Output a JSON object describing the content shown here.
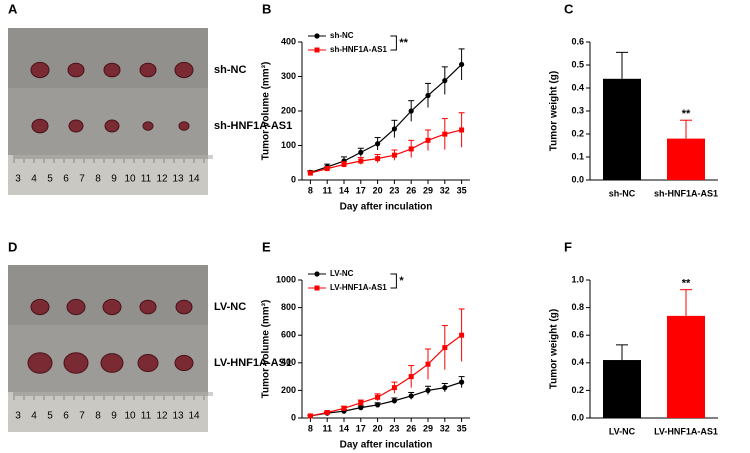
{
  "panel_letters": [
    "A",
    "B",
    "C",
    "D",
    "E",
    "F"
  ],
  "photos": [
    {
      "labels": [
        "sh-NC",
        "sh-HNF1A-AS1"
      ],
      "ruler": [
        3,
        4,
        5,
        6,
        7,
        8,
        9,
        10,
        11,
        12,
        13,
        14
      ]
    },
    {
      "labels": [
        "LV-NC",
        "LV-HNF1A-AS1"
      ],
      "ruler": [
        3,
        4,
        5,
        6,
        7,
        8,
        9,
        10,
        11,
        12,
        13,
        14
      ]
    }
  ],
  "chart_data": [
    {
      "type": "line",
      "ylabel": "Tumor volume (mm³)",
      "xlabel": "Day after inculation",
      "x": [
        8,
        11,
        14,
        17,
        20,
        23,
        26,
        29,
        32,
        35
      ],
      "xlim": [
        6.5,
        36.5
      ],
      "xticks": [
        8,
        11,
        14,
        17,
        20,
        23,
        26,
        29,
        32,
        35
      ],
      "ylim": [
        0,
        400
      ],
      "yticks": [
        0,
        100,
        200,
        300,
        400
      ],
      "annotation": "**",
      "series": [
        {
          "name": "sh-NC",
          "color": "#000000",
          "values": [
            22,
            38,
            55,
            80,
            105,
            148,
            200,
            245,
            288,
            335
          ],
          "errors": [
            5,
            8,
            12,
            12,
            18,
            25,
            30,
            35,
            40,
            45
          ]
        },
        {
          "name": "sh-HNF1A-AS1",
          "color": "#ff0000",
          "values": [
            20,
            33,
            45,
            55,
            62,
            72,
            90,
            115,
            133,
            145
          ],
          "errors": [
            5,
            6,
            8,
            10,
            12,
            15,
            25,
            30,
            45,
            50
          ]
        }
      ]
    },
    {
      "type": "bar",
      "ylabel": "Tumor weight (g)",
      "categories": [
        "sh-NC",
        "sh-HNF1A-AS1"
      ],
      "values": [
        0.44,
        0.18
      ],
      "errors": [
        0.115,
        0.08
      ],
      "colors": [
        "#000000",
        "#ff0000"
      ],
      "ylim": [
        0,
        0.6
      ],
      "yticks": [
        {
          "value": 0,
          "label": "0.0"
        },
        0.1,
        0.2,
        0.3,
        0.4,
        0.5,
        0.6
      ],
      "annotation": "**"
    },
    {
      "type": "line",
      "ylabel": "Tumor volume (mm³)",
      "xlabel": "Day after inculation",
      "x": [
        8,
        11,
        14,
        17,
        20,
        23,
        26,
        29,
        32,
        35
      ],
      "xlim": [
        6.5,
        36.5
      ],
      "xticks": [
        8,
        11,
        14,
        17,
        20,
        23,
        26,
        29,
        32,
        35
      ],
      "ylim": [
        0,
        1000
      ],
      "yticks": [
        0,
        200,
        400,
        600,
        800,
        1000
      ],
      "annotation": "*",
      "series": [
        {
          "name": "LV-NC",
          "color": "#000000",
          "values": [
            15,
            35,
            50,
            75,
            95,
            125,
            160,
            200,
            220,
            260
          ],
          "errors": [
            5,
            8,
            10,
            12,
            15,
            20,
            25,
            30,
            30,
            40
          ]
        },
        {
          "name": "LV-HNF1A-AS1",
          "color": "#ff0000",
          "values": [
            15,
            40,
            70,
            110,
            150,
            220,
            300,
            390,
            510,
            600
          ],
          "errors": [
            5,
            10,
            15,
            20,
            25,
            40,
            80,
            110,
            160,
            190
          ]
        }
      ]
    },
    {
      "type": "bar",
      "ylabel": "Tumor weight (g)",
      "categories": [
        "LV-NC",
        "LV-HNF1A-AS1"
      ],
      "values": [
        0.42,
        0.74
      ],
      "errors": [
        0.11,
        0.19
      ],
      "colors": [
        "#000000",
        "#ff0000"
      ],
      "ylim": [
        0,
        1.0
      ],
      "yticks": [
        {
          "value": 0,
          "label": "0.0"
        },
        0.2,
        0.4,
        0.6,
        0.8,
        {
          "value": 1.0,
          "label": "1.0"
        }
      ],
      "annotation": "**"
    }
  ]
}
